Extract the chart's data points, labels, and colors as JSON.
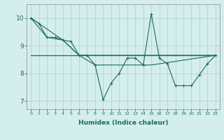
{
  "xlabel": "Humidex (Indice chaleur)",
  "background_color": "#d4eeed",
  "grid_color": "#b0cccc",
  "line_color": "#1a6b5e",
  "xlim": [
    -0.5,
    23.5
  ],
  "ylim": [
    6.7,
    10.5
  ],
  "xticks": [
    0,
    1,
    2,
    3,
    4,
    5,
    6,
    7,
    8,
    9,
    10,
    11,
    12,
    13,
    14,
    15,
    16,
    17,
    18,
    19,
    20,
    21,
    22,
    23
  ],
  "yticks": [
    7,
    8,
    9,
    10
  ],
  "series_main": [
    [
      0,
      10.0
    ],
    [
      1,
      9.8
    ],
    [
      2,
      9.3
    ],
    [
      3,
      9.3
    ],
    [
      4,
      9.2
    ],
    [
      5,
      9.15
    ],
    [
      6,
      8.65
    ],
    [
      7,
      8.65
    ],
    [
      8,
      8.3
    ],
    [
      9,
      7.05
    ],
    [
      10,
      7.65
    ],
    [
      11,
      8.0
    ],
    [
      12,
      8.55
    ],
    [
      13,
      8.55
    ],
    [
      14,
      8.3
    ],
    [
      15,
      10.15
    ],
    [
      16,
      8.55
    ],
    [
      17,
      8.35
    ],
    [
      18,
      7.55
    ],
    [
      19,
      7.55
    ],
    [
      20,
      7.55
    ],
    [
      21,
      7.95
    ],
    [
      22,
      8.35
    ],
    [
      23,
      8.65
    ]
  ],
  "series_flat": [
    [
      0,
      8.65
    ],
    [
      23,
      8.65
    ]
  ],
  "series_trend1": [
    [
      0,
      10.0
    ],
    [
      2,
      9.3
    ],
    [
      4,
      9.2
    ],
    [
      6,
      8.65
    ],
    [
      23,
      8.65
    ]
  ],
  "series_trend2": [
    [
      0,
      10.0
    ],
    [
      4,
      9.2
    ],
    [
      6,
      8.65
    ],
    [
      8,
      8.3
    ],
    [
      15,
      8.3
    ],
    [
      23,
      8.65
    ]
  ]
}
